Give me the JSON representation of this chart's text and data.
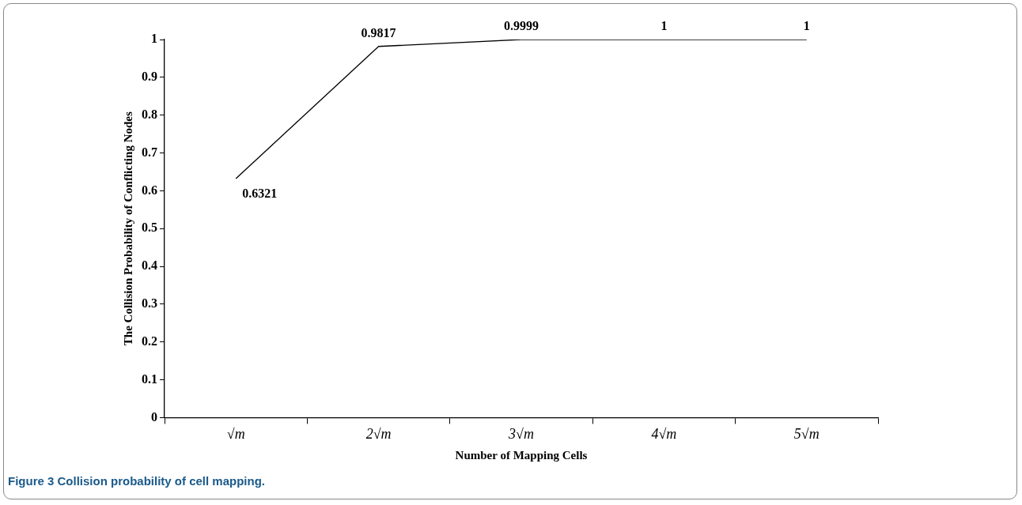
{
  "chart_data": {
    "type": "line",
    "xlabel": "Number of Mapping Cells",
    "ylabel": "The Collision Probability of Conflicting Nodes",
    "categories": [
      "√m",
      "2√m",
      "3√m",
      "4√m",
      "5√m"
    ],
    "series": [
      {
        "color": "#000000",
        "values": [
          0.6321,
          0.9817,
          0.9999,
          1,
          1
        ]
      }
    ],
    "ylim": [
      0,
      1
    ],
    "yticks": [
      0,
      0.1,
      0.2,
      0.3,
      0.4,
      0.5,
      0.6,
      0.7,
      0.8,
      0.9,
      1
    ],
    "grid": false,
    "legend": false,
    "marker": "none",
    "line_style": "solid",
    "data_labels": true,
    "annotations": [
      "Figure 3 Collision probability of cell mapping."
    ]
  }
}
